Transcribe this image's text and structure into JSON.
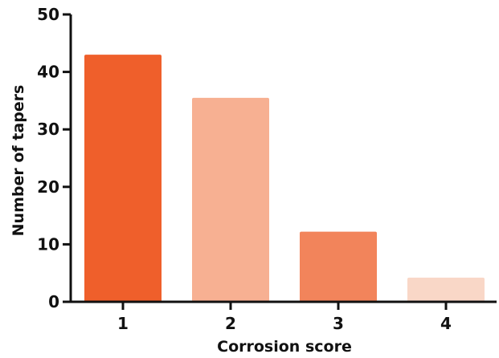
{
  "chart_data": {
    "type": "bar",
    "title": "",
    "xlabel": "Corrosion score",
    "ylabel": "Number of tapers",
    "categories": [
      "1",
      "2",
      "3",
      "4"
    ],
    "values": [
      43,
      35.5,
      12.2,
      4.2
    ],
    "ylim": [
      0,
      50
    ],
    "yticks": [
      "0",
      "10",
      "20",
      "30",
      "40",
      "50"
    ],
    "grid": false,
    "legend": "none",
    "colors": [
      "#ef5f2b",
      "#f7b092",
      "#f2845b",
      "#f9d7c7"
    ],
    "axis_color": "#111111"
  }
}
